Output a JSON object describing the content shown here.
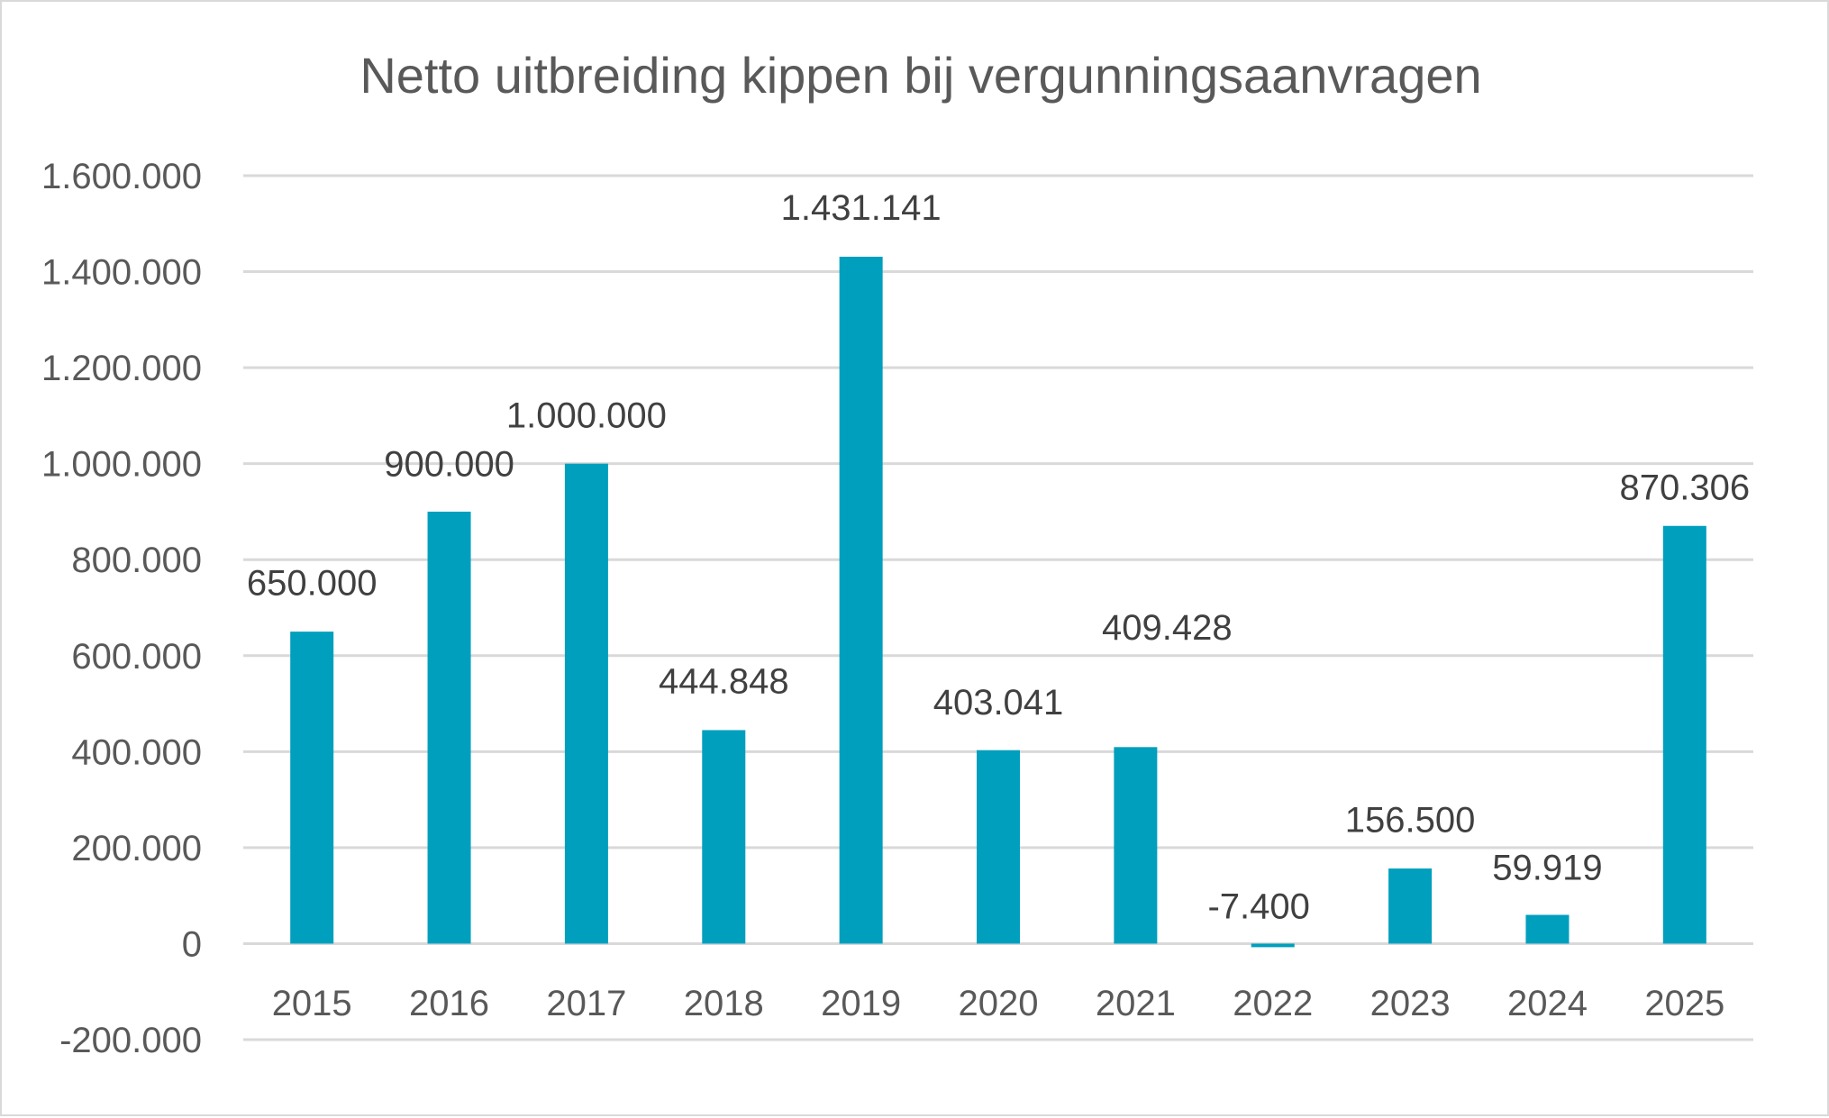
{
  "chart_data": {
    "type": "bar",
    "title": "Netto uitbreiding kippen bij vergunningsaanvragen",
    "xlabel": "",
    "ylabel": "",
    "categories": [
      "2015",
      "2016",
      "2017",
      "2018",
      "2019",
      "2020",
      "2021",
      "2022",
      "2023",
      "2024",
      "2025"
    ],
    "values": [
      650000,
      900000,
      1000000,
      444848,
      1431141,
      403041,
      409428,
      -7400,
      156500,
      59919,
      870306
    ],
    "data_labels": [
      "650.000",
      "900.000",
      "1.000.000",
      "444.848",
      "1.431.141",
      "403.041",
      "409.428",
      "-7.400",
      "156.500",
      "59.919",
      "870.306"
    ],
    "ylim": [
      -200000,
      1600000
    ],
    "yticks": [
      -200000,
      0,
      200000,
      400000,
      600000,
      800000,
      1000000,
      1200000,
      1400000,
      1600000
    ],
    "ytick_labels": [
      "-200.000",
      "0",
      "200.000",
      "400.000",
      "600.000",
      "800.000",
      "1.000.000",
      "1.200.000",
      "1.400.000",
      "1.600.000"
    ],
    "grid": true,
    "legend": "none",
    "bar_color": "#009FBD",
    "grid_color": "#D9D9D9"
  }
}
